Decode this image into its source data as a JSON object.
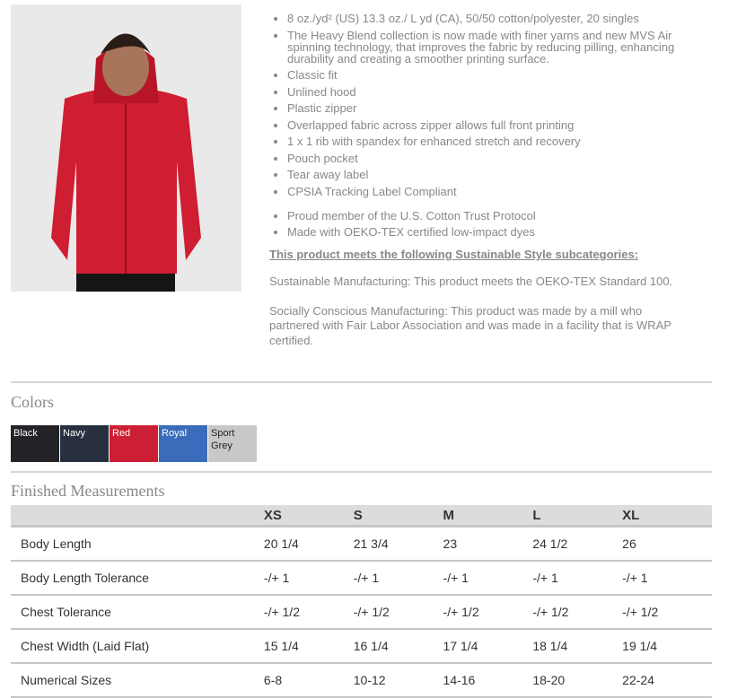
{
  "features": [
    "8 oz./yd² (US) 13.3 oz./ L yd (CA), 50/50 cotton/polyester, 20 singles",
    "The Heavy Blend collection is now made with finer yarns and new MVS Air spinning technology, that improves the fabric by reducing pilling, enhancing durability and creating a smoother printing surface.",
    "Classic fit",
    "Unlined hood",
    "Plastic zipper",
    "Overlapped fabric across zipper allows full front printing",
    "1 x 1 rib with spandex for enhanced stretch and recovery",
    "Pouch pocket",
    "Tear away label",
    "CPSIA Tracking Label Compliant"
  ],
  "features2": [
    "Proud member of the U.S. Cotton Trust Protocol",
    "Made with OEKO-TEX certified low-impact dyes"
  ],
  "sustainable_title": "This product meets the following Sustainable Style subcategories:",
  "sustainable_text": [
    "Sustainable Manufacturing: This product meets the OEKO-TEX Standard 100.",
    "Socially Conscious Manufacturing: This product was made by a mill who partnered with Fair Labor Association and was made in a facility that is WRAP certified."
  ],
  "colors_title": "Colors",
  "colors": [
    {
      "name": "Black",
      "hex": "#232327",
      "text": "#fff"
    },
    {
      "name": "Navy",
      "hex": "#283040",
      "text": "#fff"
    },
    {
      "name": "Red",
      "hex": "#cc1f33",
      "text": "#fff"
    },
    {
      "name": "Royal",
      "hex": "#3a6cbb",
      "text": "#fff"
    },
    {
      "name": "Sport Grey",
      "hex": "#c8c8c8",
      "text": "#222"
    }
  ],
  "measurements_title": "Finished Measurements",
  "sizes": [
    "XS",
    "S",
    "M",
    "L",
    "XL"
  ],
  "rows": [
    {
      "label": "Body Length",
      "values": [
        "20 1/4",
        "21 3/4",
        "23",
        "24 1/2",
        "26"
      ]
    },
    {
      "label": "Body Length Tolerance",
      "values": [
        "-/+ 1",
        "-/+ 1",
        "-/+ 1",
        "-/+ 1",
        "-/+ 1"
      ]
    },
    {
      "label": "Chest Tolerance",
      "values": [
        "-/+ 1/2",
        "-/+ 1/2",
        "-/+ 1/2",
        "-/+ 1/2",
        "-/+ 1/2"
      ]
    },
    {
      "label": "Chest Width (Laid Flat)",
      "values": [
        "15 1/4",
        "16 1/4",
        "17 1/4",
        "18 1/4",
        "19 1/4"
      ]
    },
    {
      "label": "Numerical Sizes",
      "values": [
        "6-8",
        "10-12",
        "14-16",
        "18-20",
        "22-24"
      ]
    }
  ]
}
